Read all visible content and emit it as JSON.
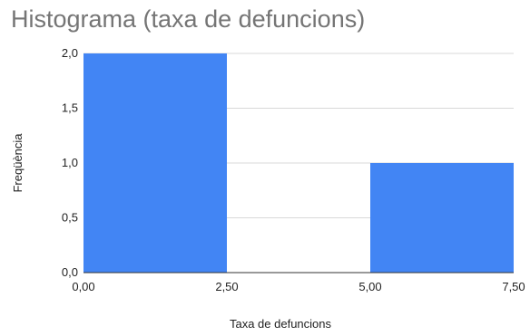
{
  "chart_data": {
    "type": "bar",
    "title": "Histograma (taxa de defuncions)",
    "xlabel": "Taxa de defuncions",
    "ylabel": "Freqüència",
    "xlim": [
      0,
      7.5
    ],
    "ylim": [
      0,
      2
    ],
    "grid": true,
    "bins": [
      {
        "x0": 0,
        "x1": 2.5,
        "value": 2
      },
      {
        "x0": 2.5,
        "x1": 5,
        "value": 0
      },
      {
        "x0": 5,
        "x1": 7.5,
        "value": 1
      }
    ],
    "x_ticks": [
      {
        "value": 0,
        "label": "0,00"
      },
      {
        "value": 2.5,
        "label": "2,50"
      },
      {
        "value": 5,
        "label": "5,00"
      },
      {
        "value": 7.5,
        "label": "7,50"
      }
    ],
    "y_ticks": [
      {
        "value": 0,
        "label": "0,0"
      },
      {
        "value": 0.5,
        "label": "0,5"
      },
      {
        "value": 1,
        "label": "1,0"
      },
      {
        "value": 1.5,
        "label": "1,5"
      },
      {
        "value": 2,
        "label": "2,0"
      }
    ],
    "colors": {
      "bar": "#4285f4",
      "grid": "#d9d9d9",
      "axis": "#333333",
      "title": "#757575"
    }
  }
}
